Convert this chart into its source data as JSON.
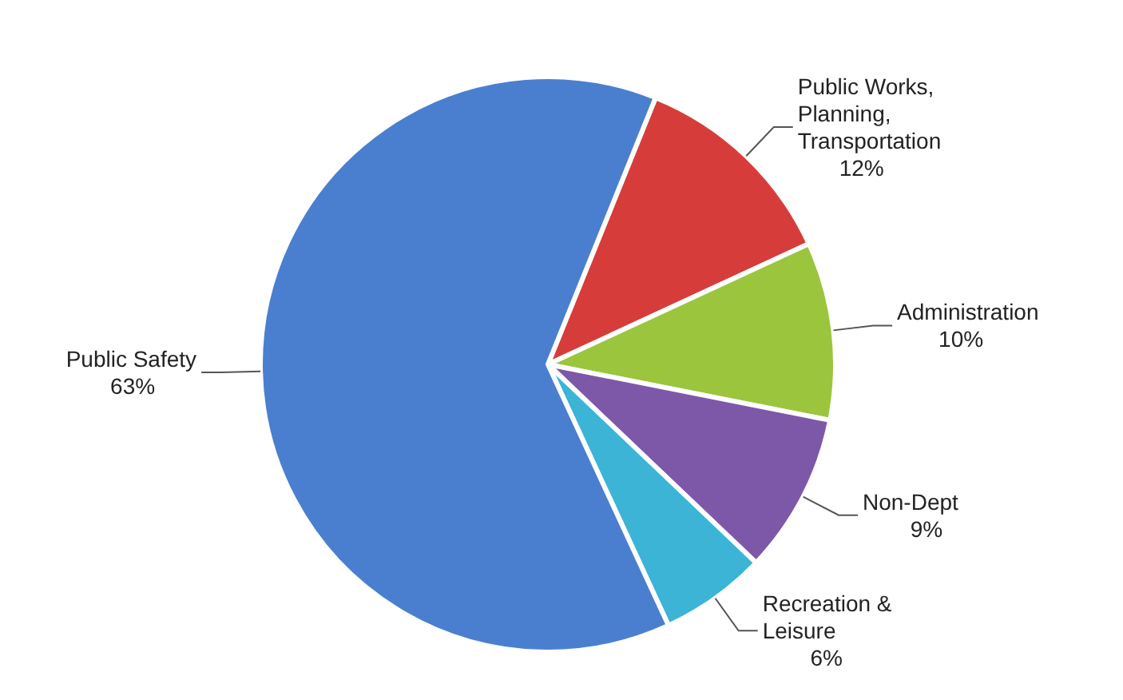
{
  "chart_data": {
    "type": "pie",
    "categories": [
      "Public Works, Planning, Transportation",
      "Administration",
      "Non-Dept",
      "Recreation & Leisure",
      "Public Safety"
    ],
    "values": [
      12,
      10,
      9,
      6,
      63
    ],
    "value_labels": [
      "12%",
      "10%",
      "9%",
      "6%",
      "63%"
    ],
    "colors": [
      "#d63d3a",
      "#9bc53d",
      "#7e58a8",
      "#3bb4d6",
      "#4a7fd0"
    ],
    "legend": false
  }
}
